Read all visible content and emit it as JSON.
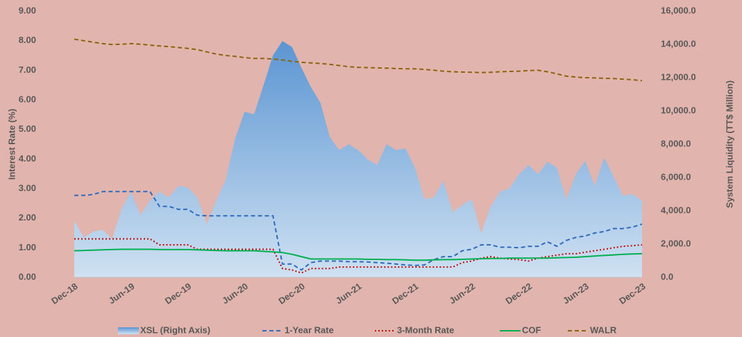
{
  "chart_data": {
    "type": "line",
    "y_label": "Interest Rate (%)",
    "y2_label": "System Liquidity (TT$ Million)",
    "categories": [
      "Dec-18",
      null,
      null,
      null,
      null,
      null,
      "Jun-19",
      null,
      null,
      null,
      null,
      null,
      "Dec-19",
      null,
      null,
      null,
      null,
      null,
      "Jun-20",
      null,
      null,
      null,
      null,
      null,
      "Dec-20",
      null,
      null,
      null,
      null,
      null,
      "Jun-21",
      null,
      null,
      null,
      null,
      null,
      "Dec-21",
      null,
      null,
      null,
      null,
      null,
      "Jun-22",
      null,
      null,
      null,
      null,
      null,
      "Dec-22",
      null,
      null,
      null,
      null,
      null,
      "Jun-23",
      null,
      null,
      null,
      null,
      null,
      "Dec-23"
    ],
    "ylim": [
      0,
      9
    ],
    "yticks": [
      {
        "value": 0,
        "label": "0.00"
      },
      {
        "value": 1,
        "label": "1.00"
      },
      {
        "value": 2,
        "label": "2.00"
      },
      {
        "value": 3,
        "label": "3.00"
      },
      {
        "value": 4,
        "label": "4.00"
      },
      {
        "value": 5,
        "label": "5.00"
      },
      {
        "value": 6,
        "label": "6.00"
      },
      {
        "value": 7,
        "label": "7.00"
      },
      {
        "value": 8,
        "label": "8.00"
      },
      {
        "value": 9,
        "label": "9.00"
      }
    ],
    "y2lim": [
      0,
      16000
    ],
    "y2ticks": [
      {
        "value": 0,
        "label": "0.0"
      },
      {
        "value": 2000,
        "label": "2,000.0"
      },
      {
        "value": 4000,
        "label": "4,000.0"
      },
      {
        "value": 6000,
        "label": "6,000.0"
      },
      {
        "value": 8000,
        "label": "8,000.0"
      },
      {
        "value": 10000,
        "label": "10,000.0"
      },
      {
        "value": 12000,
        "label": "12,000.0"
      },
      {
        "value": 14000,
        "label": "14,000.0"
      },
      {
        "value": 16000,
        "label": "16,000.0"
      }
    ],
    "legend": "bottom",
    "series": [
      {
        "name": "XSL (Right Axis)",
        "type": "area",
        "axis": "y2",
        "color": "#8db8e4",
        "values": [
          3400,
          2400,
          2750,
          2850,
          2300,
          4100,
          5150,
          3750,
          4600,
          5150,
          4800,
          5500,
          5400,
          4800,
          3200,
          4600,
          5850,
          8350,
          9950,
          9800,
          11550,
          13350,
          14200,
          13850,
          12600,
          11450,
          10500,
          8450,
          7650,
          8000,
          7650,
          7100,
          6750,
          8000,
          7650,
          7750,
          6600,
          4700,
          4800,
          5800,
          3900,
          4350,
          4700,
          2650,
          4250,
          5150,
          5350,
          6200,
          6750,
          6200,
          6950,
          6600,
          4700,
          6200,
          7000,
          5500,
          7200,
          6050,
          4900,
          5000,
          4600
        ]
      },
      {
        "name": "1-Year Rate",
        "type": "line",
        "dash": "dashed",
        "color": "#2e6bbd",
        "values": [
          2.77,
          2.77,
          2.8,
          2.9,
          2.9,
          2.9,
          2.9,
          2.9,
          2.9,
          2.4,
          2.4,
          2.3,
          2.3,
          2.1,
          2.08,
          2.08,
          2.08,
          2.08,
          2.08,
          2.08,
          2.08,
          2.08,
          0.45,
          0.45,
          0.25,
          0.5,
          0.55,
          0.55,
          0.55,
          0.53,
          0.53,
          0.52,
          0.5,
          0.48,
          0.45,
          0.42,
          0.4,
          0.42,
          0.6,
          0.7,
          0.7,
          0.9,
          0.95,
          1.1,
          1.1,
          1.02,
          1.02,
          1.0,
          1.05,
          1.05,
          1.2,
          1.05,
          1.25,
          1.35,
          1.4,
          1.5,
          1.55,
          1.65,
          1.65,
          1.7,
          1.8
        ]
      },
      {
        "name": "3-Month Rate",
        "type": "line",
        "dash": "dotted",
        "color": "#c00000",
        "values": [
          1.3,
          1.3,
          1.3,
          1.3,
          1.3,
          1.3,
          1.3,
          1.3,
          1.3,
          1.1,
          1.1,
          1.1,
          1.1,
          0.95,
          0.95,
          0.95,
          0.95,
          0.95,
          0.95,
          0.95,
          0.95,
          0.95,
          0.3,
          0.25,
          0.15,
          0.3,
          0.3,
          0.3,
          0.35,
          0.35,
          0.35,
          0.35,
          0.35,
          0.35,
          0.35,
          0.35,
          0.35,
          0.35,
          0.35,
          0.35,
          0.35,
          0.5,
          0.55,
          0.65,
          0.7,
          0.65,
          0.62,
          0.6,
          0.55,
          0.65,
          0.7,
          0.75,
          0.8,
          0.8,
          0.85,
          0.9,
          0.95,
          1.0,
          1.05,
          1.07,
          1.1
        ]
      },
      {
        "name": "COF",
        "type": "line",
        "dash": "solid",
        "color": "#00b050",
        "values": [
          0.9,
          0.91,
          0.92,
          0.93,
          0.94,
          0.95,
          0.95,
          0.95,
          0.95,
          0.94,
          0.94,
          0.94,
          0.94,
          0.93,
          0.92,
          0.91,
          0.9,
          0.9,
          0.9,
          0.9,
          0.88,
          0.86,
          0.84,
          0.78,
          0.7,
          0.62,
          0.62,
          0.62,
          0.62,
          0.62,
          0.62,
          0.61,
          0.61,
          0.6,
          0.6,
          0.59,
          0.58,
          0.58,
          0.59,
          0.6,
          0.6,
          0.61,
          0.62,
          0.63,
          0.64,
          0.64,
          0.65,
          0.65,
          0.65,
          0.65,
          0.65,
          0.66,
          0.67,
          0.68,
          0.7,
          0.72,
          0.74,
          0.76,
          0.78,
          0.79,
          0.8
        ]
      },
      {
        "name": "WALR",
        "type": "line",
        "dash": "dashed",
        "color": "#8a6410",
        "values": [
          8.05,
          8.0,
          7.95,
          7.9,
          7.87,
          7.88,
          7.9,
          7.88,
          7.85,
          7.82,
          7.8,
          7.77,
          7.74,
          7.7,
          7.62,
          7.55,
          7.5,
          7.47,
          7.43,
          7.4,
          7.4,
          7.38,
          7.35,
          7.3,
          7.27,
          7.25,
          7.23,
          7.2,
          7.16,
          7.12,
          7.1,
          7.09,
          7.08,
          7.07,
          7.06,
          7.05,
          7.05,
          7.03,
          7.0,
          6.97,
          6.95,
          6.94,
          6.93,
          6.92,
          6.93,
          6.95,
          6.96,
          6.97,
          6.99,
          7.0,
          6.95,
          6.88,
          6.8,
          6.77,
          6.75,
          6.74,
          6.73,
          6.72,
          6.7,
          6.68,
          6.65
        ]
      }
    ]
  }
}
